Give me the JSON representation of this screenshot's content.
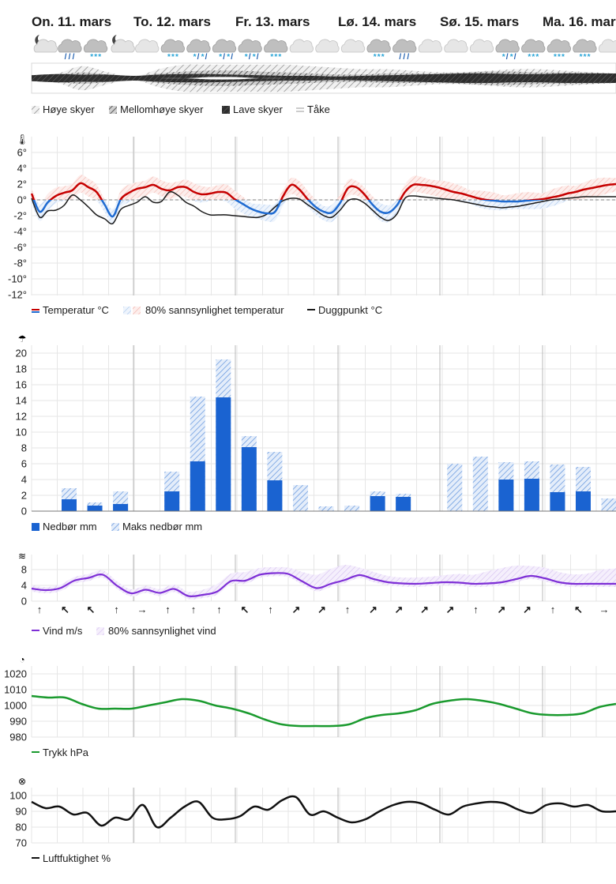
{
  "days": [
    "On. 11. mars",
    "To. 12. mars",
    "Fr. 13. mars",
    "Lø. 14. mars",
    "Sø. 15. mars",
    "Ma. 16. mars"
  ],
  "icons": [
    "moon-cloud-icon",
    "rain-cloud-icon",
    "snow-cloud-icon",
    "moon-cloud-icon",
    "cloud-icon",
    "snow-cloud-icon",
    "sleet-cloud-icon",
    "sleet-cloud-icon",
    "sleet-cloud-icon",
    "snow-cloud-icon",
    "cloud-icon",
    "cloud-icon",
    "cloud-icon",
    "snow-cloud-icon",
    "rain-cloud-icon",
    "cloud-icon",
    "cloud-icon",
    "cloud-icon",
    "sleet-cloud-icon",
    "snow-cloud-icon",
    "snow-cloud-icon",
    "snow-cloud-icon",
    "cloud-icon"
  ],
  "clouds": {
    "legend": [
      "Høye skyer",
      "Mellomhøye skyer",
      "Lave skyer",
      "Tåke"
    ]
  },
  "temperature": {
    "legend": [
      "Temperatur °C",
      "80% sannsynlighet temperatur",
      "Duggpunkt °C"
    ]
  },
  "precipitation": {
    "legend": [
      "Nedbør mm",
      "Maks nedbør mm"
    ]
  },
  "wind": {
    "legend": [
      "Vind m/s",
      "80% sannsynlighet vind"
    ],
    "arrows": [
      "↑",
      "↖",
      "↖",
      "↑",
      "→",
      "↑",
      "↑",
      "↑",
      "↖",
      "↑",
      "↗",
      "↗",
      "↑",
      "↗",
      "↗",
      "↗",
      "↗",
      "↑",
      "↗",
      "↗",
      "↑",
      "↖",
      "→"
    ]
  },
  "pressure": {
    "legend": [
      "Trykk hPa"
    ]
  },
  "humidity": {
    "legend": [
      "Luftfuktighet %"
    ]
  },
  "colors": {
    "temp": "#c60000",
    "temp_neg": "#1f6bd1",
    "dew": "#1b1b1b",
    "precip": "#1a63d1",
    "precip_max": "#6e9fe0",
    "wind": "#7e2fd6",
    "wind_band": "#cdb3f0",
    "pressure": "#1a9a2e",
    "humidity": "#111111",
    "grid": "#e6e6e6",
    "day_line": "#b8b8b8"
  },
  "chart_data": [
    {
      "type": "area",
      "name": "clouds",
      "series": [
        {
          "name": "Høye skyer",
          "values": [
            10,
            30,
            80,
            40,
            10,
            60,
            90,
            90,
            90,
            90,
            90,
            80,
            70,
            60,
            60,
            50,
            40,
            40,
            50,
            60,
            60,
            50,
            40,
            30
          ]
        },
        {
          "name": "Mellomhøye skyer",
          "values": [
            30,
            40,
            60,
            40,
            20,
            50,
            70,
            80,
            80,
            70,
            60,
            50,
            40,
            40,
            50,
            50,
            50,
            60,
            70,
            70,
            60,
            60,
            60,
            50
          ]
        },
        {
          "name": "Lave skyer",
          "values": [
            50,
            70,
            60,
            60,
            40,
            60,
            70,
            70,
            60,
            50,
            40,
            40,
            30,
            40,
            50,
            60,
            70,
            80,
            80,
            70,
            70,
            80,
            80,
            80
          ]
        },
        {
          "name": "Tåke",
          "values": [
            0,
            0,
            0,
            0,
            0,
            0,
            0,
            5,
            5,
            0,
            0,
            0,
            0,
            0,
            0,
            0,
            0,
            0,
            0,
            0,
            0,
            0,
            0,
            0
          ]
        }
      ]
    },
    {
      "type": "line",
      "name": "temperature",
      "ylim": [
        -12,
        8
      ],
      "yticks": [
        -12,
        -10,
        -8,
        -6,
        -4,
        -2,
        0,
        2,
        4,
        6
      ],
      "x_hours": [
        0,
        2,
        4,
        6,
        8,
        10,
        12,
        14,
        16,
        18,
        20,
        22,
        24,
        26,
        28,
        30,
        32,
        34,
        36,
        38,
        40,
        42,
        44,
        46,
        48,
        50,
        52,
        54,
        56,
        58,
        60,
        62,
        64,
        66,
        68,
        70,
        72,
        74,
        76,
        78,
        80,
        82,
        84,
        86,
        88,
        90,
        92,
        94,
        96,
        98,
        100,
        102,
        104,
        106,
        108,
        110,
        112,
        114,
        116,
        118,
        120,
        122,
        124,
        126,
        128,
        130,
        132,
        134,
        136,
        138,
        140,
        142,
        144
      ],
      "series": [
        {
          "name": "Temperatur °C",
          "values": [
            0.8,
            -1.5,
            -0.3,
            0.5,
            0.9,
            1.2,
            2.1,
            1.6,
            1.0,
            -0.6,
            -2.1,
            0.1,
            0.9,
            1.4,
            1.6,
            1.9,
            1.4,
            1.2,
            1.6,
            1.6,
            1.0,
            0.7,
            0.8,
            1.0,
            0.9,
            0.1,
            -0.5,
            -1.1,
            -1.5,
            -1.7,
            -1.5,
            0.5,
            1.9,
            1.3,
            0.1,
            -0.9,
            -1.5,
            -1.6,
            -0.4,
            1.5,
            1.6,
            0.7,
            -0.6,
            -1.5,
            -1.6,
            -0.7,
            1.0,
            1.9,
            1.9,
            1.8,
            1.6,
            1.3,
            1.0,
            0.8,
            0.5,
            0.2,
            0.0,
            -0.1,
            -0.2,
            -0.2,
            -0.2,
            -0.1,
            0.0,
            0.1,
            0.3,
            0.5,
            0.8,
            1.0,
            1.3,
            1.5,
            1.7,
            1.9,
            2.0
          ]
        },
        {
          "name": "Duggpunkt °C",
          "values": [
            0.2,
            -2.2,
            -1.4,
            -1.3,
            -0.7,
            0.6,
            0.0,
            -0.9,
            -1.9,
            -2.4,
            -3.0,
            -1.2,
            -0.7,
            -0.3,
            0.4,
            -0.3,
            -0.2,
            1.0,
            0.6,
            -0.3,
            -0.8,
            -1.5,
            -1.9,
            -1.9,
            -1.9,
            -2.0,
            -2.1,
            -2.2,
            -2.2,
            -1.8,
            -0.9,
            -0.1,
            0.2,
            0.1,
            -0.6,
            -1.3,
            -2.0,
            -2.2,
            -1.3,
            -0.1,
            0.1,
            -0.4,
            -1.3,
            -2.2,
            -2.6,
            -1.8,
            0.2,
            0.5,
            0.4,
            0.3,
            0.2,
            0.1,
            0.0,
            -0.2,
            -0.4,
            -0.6,
            -0.8,
            -0.9,
            -1.0,
            -0.9,
            -0.8,
            -0.6,
            -0.4,
            -0.2,
            0.0,
            0.1,
            0.2,
            0.3,
            0.4,
            0.4,
            0.4,
            0.4,
            0.4
          ]
        }
      ]
    },
    {
      "type": "bar",
      "name": "precipitation",
      "ylim": [
        0,
        20
      ],
      "yticks": [
        0,
        2,
        4,
        6,
        8,
        10,
        12,
        14,
        16,
        18,
        20
      ],
      "categories": [
        1,
        2,
        3,
        4,
        5,
        6,
        7,
        8,
        9,
        10,
        11,
        12,
        13,
        14,
        15,
        16,
        17,
        18,
        19,
        20,
        21,
        22,
        23
      ],
      "series": [
        {
          "name": "Nedbør mm",
          "values": [
            1.5,
            0.7,
            0.9,
            0,
            2.5,
            6.3,
            14.4,
            8.1,
            3.9,
            0,
            0,
            0,
            1.9,
            1.8,
            0,
            0,
            0,
            4.0,
            4.1,
            2.4,
            2.5,
            0,
            0
          ]
        },
        {
          "name": "Maks nedbør mm",
          "values": [
            2.9,
            1.1,
            2.5,
            0,
            5.0,
            14.5,
            19.2,
            9.5,
            7.5,
            3.3,
            0.6,
            0.7,
            2.5,
            2.2,
            0,
            6.0,
            6.9,
            6.2,
            6.3,
            5.9,
            5.6,
            1.6,
            0
          ]
        }
      ]
    },
    {
      "type": "line",
      "name": "wind",
      "ylim": [
        0,
        9
      ],
      "yticks": [
        0,
        4,
        8
      ],
      "series": [
        {
          "name": "Vind m/s",
          "values": [
            3.2,
            2.8,
            3.3,
            5.2,
            5.9,
            6.7,
            3.9,
            2.0,
            2.9,
            2.1,
            3.1,
            1.3,
            1.6,
            2.4,
            5.1,
            5.2,
            6.7,
            7.1,
            6.9,
            5.0,
            3.3,
            4.4,
            5.4,
            6.6,
            5.6,
            4.8,
            4.5,
            4.4,
            4.6,
            4.8,
            4.7,
            4.4,
            4.5,
            4.8,
            5.6,
            6.4,
            5.8,
            4.8,
            4.4,
            4.4,
            4.4,
            4.4
          ]
        },
        {
          "name": "80% sannsynlighet vind",
          "values": [
            4.0,
            3.6,
            4.2,
            6.1,
            6.9,
            7.8,
            5.0,
            3.0,
            3.9,
            3.1,
            4.2,
            2.4,
            2.9,
            4.3,
            7.0,
            7.4,
            8.4,
            8.6,
            8.5,
            7.4,
            6.7,
            8.2,
            9.2,
            8.5,
            7.4,
            6.4,
            6.0,
            6.0,
            6.2,
            6.6,
            6.9,
            6.7,
            7.6,
            8.4,
            9.0,
            8.9,
            8.5,
            7.4,
            6.8,
            7.0,
            8.0,
            8.3
          ]
        }
      ]
    },
    {
      "type": "line",
      "name": "pressure",
      "ylim": [
        980,
        1020
      ],
      "yticks": [
        980,
        990,
        1000,
        1010,
        1020
      ],
      "series": [
        {
          "name": "Trykk hPa",
          "values": [
            1006,
            1005,
            1005,
            1001,
            998,
            998,
            998,
            1000,
            1002,
            1004,
            1003,
            1000,
            998,
            995,
            991,
            988,
            987,
            987,
            987,
            988,
            992,
            994,
            995,
            997,
            1001,
            1003,
            1004,
            1003,
            1001,
            998,
            995,
            994,
            994,
            995,
            999,
            1001
          ]
        }
      ]
    },
    {
      "type": "line",
      "name": "humidity",
      "ylim": [
        70,
        100
      ],
      "yticks": [
        70,
        80,
        90,
        100
      ],
      "series": [
        {
          "name": "Luftfuktighet %",
          "values": [
            96,
            92,
            93,
            88,
            89,
            81,
            86,
            85,
            94,
            80,
            86,
            93,
            96,
            86,
            85,
            87,
            93,
            91,
            97,
            99,
            88,
            90,
            86,
            83,
            85,
            90,
            94,
            96,
            95,
            91,
            88,
            93,
            95,
            96,
            95,
            91,
            89,
            94,
            95,
            93,
            94,
            90,
            90
          ]
        }
      ]
    }
  ]
}
